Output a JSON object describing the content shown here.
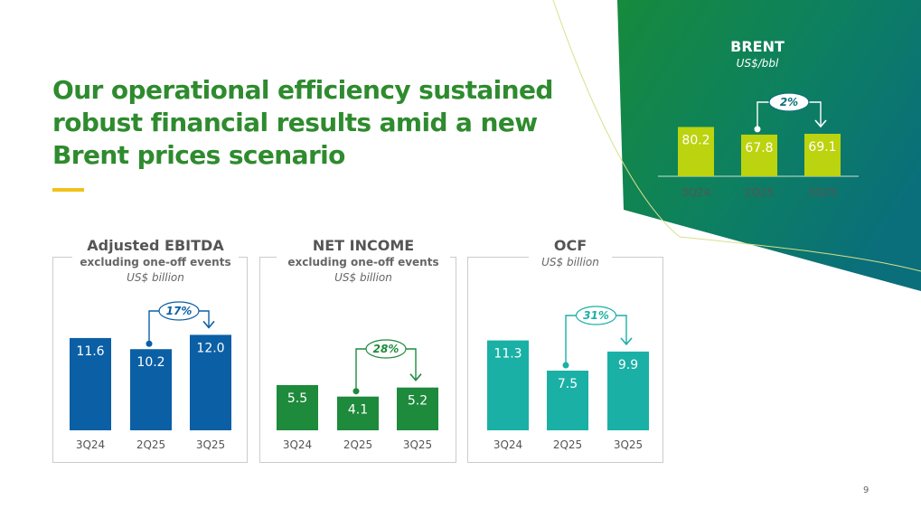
{
  "title_lines": [
    "Our operational efficiency sustained",
    "robust financial results amid a new",
    "Brent prices scenario"
  ],
  "colors": {
    "title": "#2e8b2e",
    "accent": "#f0c21b",
    "ebitda": "#0b5fa5",
    "net_income": "#1e8a3c",
    "ocf": "#1ab0a5",
    "brent": "#bcd30f"
  },
  "page_number": "9",
  "chart_data": [
    {
      "id": "brent",
      "type": "bar",
      "title": "BRENT",
      "unit": "US$/bbl",
      "categories": [
        "3Q24",
        "2Q25",
        "3Q25"
      ],
      "values": [
        80.2,
        67.8,
        69.1
      ],
      "labels": [
        "80.2",
        "67.8",
        "69.1"
      ],
      "annotation": {
        "text": "2%",
        "from_category": "2Q25",
        "to_category": "3Q25"
      }
    },
    {
      "id": "ebitda",
      "type": "bar",
      "title": "Adjusted EBITDA",
      "subtitle": "excluding one-off events",
      "unit": "US$ billion",
      "categories": [
        "3Q24",
        "2Q25",
        "3Q25"
      ],
      "values": [
        11.6,
        10.2,
        12.0
      ],
      "labels": [
        "11.6",
        "10.2",
        "12.0"
      ],
      "annotation": {
        "text": "17%",
        "from_category": "2Q25",
        "to_category": "3Q25"
      }
    },
    {
      "id": "net_income",
      "type": "bar",
      "title": "NET INCOME",
      "subtitle": "excluding one-off events",
      "unit": "US$ billion",
      "categories": [
        "3Q24",
        "2Q25",
        "3Q25"
      ],
      "values": [
        5.5,
        4.1,
        5.2
      ],
      "labels": [
        "5.5",
        "4.1",
        "5.2"
      ],
      "annotation": {
        "text": "28%",
        "from_category": "2Q25",
        "to_category": "3Q25"
      }
    },
    {
      "id": "ocf",
      "type": "bar",
      "title": "OCF",
      "unit": "US$ billion",
      "categories": [
        "3Q24",
        "2Q25",
        "3Q25"
      ],
      "values": [
        11.3,
        7.5,
        9.9
      ],
      "labels": [
        "11.3",
        "7.5",
        "9.9"
      ],
      "annotation": {
        "text": "31%",
        "from_category": "2Q25",
        "to_category": "3Q25"
      }
    }
  ]
}
